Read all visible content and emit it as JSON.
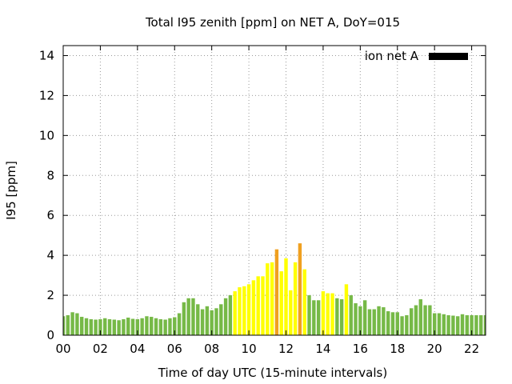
{
  "chart_data": {
    "type": "bar",
    "title": "Total I95 zenith [ppm] on NET A, DoY=015",
    "xlabel": "Time of day UTC (15-minute intervals)",
    "ylabel": "I95 [ppm]",
    "xlim": [
      0,
      22.75
    ],
    "ylim": [
      0,
      14.5
    ],
    "x_ticks": [
      0,
      2,
      4,
      6,
      8,
      10,
      12,
      14,
      16,
      18,
      20,
      22
    ],
    "x_tick_labels": [
      "00",
      "02",
      "04",
      "06",
      "08",
      "10",
      "12",
      "14",
      "16",
      "18",
      "20",
      "22"
    ],
    "y_ticks": [
      0,
      2,
      4,
      6,
      8,
      10,
      12,
      14
    ],
    "y_tick_labels": [
      "0",
      "2",
      "4",
      "6",
      "8",
      "10",
      "12",
      "14"
    ],
    "grid": true,
    "legend": {
      "label": "ion net A",
      "position": "top-right",
      "color": "#000000"
    },
    "bar_width_hours": 0.19,
    "color_thresholds": [
      {
        "max": 2.0,
        "color": "#76b947"
      },
      {
        "max": 4.0,
        "color": "#ffff00"
      },
      {
        "max": 99,
        "color": "#f0a020"
      }
    ],
    "x": [
      0,
      0.25,
      0.5,
      0.75,
      1,
      1.25,
      1.5,
      1.75,
      2,
      2.25,
      2.5,
      2.75,
      3,
      3.25,
      3.5,
      3.75,
      4,
      4.25,
      4.5,
      4.75,
      5,
      5.25,
      5.5,
      5.75,
      6,
      6.25,
      6.5,
      6.75,
      7,
      7.25,
      7.5,
      7.75,
      8,
      8.25,
      8.5,
      8.75,
      9,
      9.25,
      9.5,
      9.75,
      10,
      10.25,
      10.5,
      10.75,
      11,
      11.25,
      11.5,
      11.75,
      12,
      12.25,
      12.5,
      12.75,
      13,
      13.25,
      13.5,
      13.75,
      14,
      14.25,
      14.5,
      14.75,
      15,
      15.25,
      15.5,
      15.75,
      16,
      16.25,
      16.5,
      16.75,
      17,
      17.25,
      17.5,
      17.75,
      18,
      18.25,
      18.5,
      18.75,
      19,
      19.25,
      19.5,
      19.75,
      20,
      20.25,
      20.5,
      20.75,
      21,
      21.25,
      21.5,
      21.75,
      22,
      22.25,
      22.5,
      22.75
    ],
    "values": [
      0.95,
      1.0,
      1.15,
      1.1,
      0.92,
      0.85,
      0.8,
      0.78,
      0.8,
      0.85,
      0.8,
      0.78,
      0.75,
      0.8,
      0.88,
      0.82,
      0.8,
      0.85,
      0.95,
      0.92,
      0.85,
      0.8,
      0.78,
      0.85,
      0.9,
      1.1,
      1.65,
      1.85,
      1.85,
      1.55,
      1.3,
      1.45,
      1.25,
      1.35,
      1.55,
      1.85,
      2.0,
      2.2,
      2.4,
      2.45,
      2.55,
      2.75,
      2.95,
      2.95,
      3.6,
      3.65,
      4.3,
      3.2,
      3.85,
      2.25,
      3.65,
      4.6,
      3.3,
      2.0,
      1.75,
      1.75,
      2.2,
      2.1,
      2.1,
      1.85,
      1.8,
      2.55,
      2.0,
      1.6,
      1.45,
      1.75,
      1.3,
      1.3,
      1.45,
      1.4,
      1.2,
      1.15,
      1.15,
      0.95,
      1.0,
      1.35,
      1.5,
      1.8,
      1.5,
      1.5,
      1.1,
      1.1,
      1.05,
      1.0,
      0.98,
      0.95,
      1.05,
      1.0,
      1.0,
      1.0,
      1.0,
      1.0
    ]
  }
}
